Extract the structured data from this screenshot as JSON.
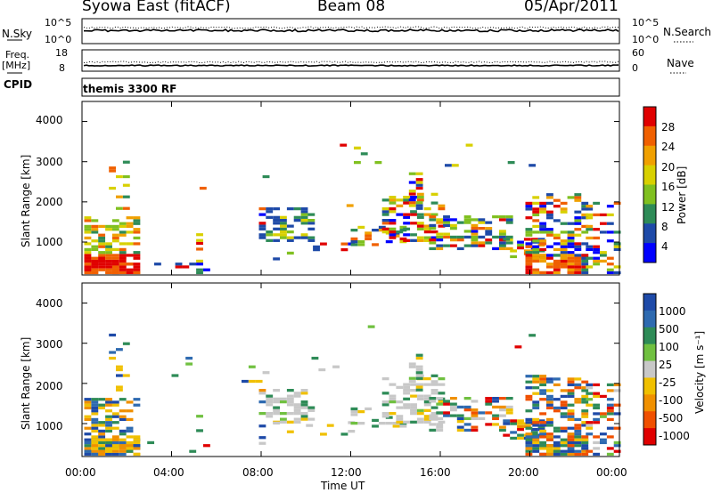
{
  "header": {
    "station": "Syowa East (fitACF)",
    "beam": "Beam 08",
    "date": "05/Apr/2011"
  },
  "top_panels": {
    "nsky_label": "N.Sky",
    "nsky_ticks": [
      "10^5",
      "10^0"
    ],
    "nsearch_label": "N.Search",
    "nsearch_ticks": [
      "10^5",
      "10^0"
    ],
    "freq_label_1": "Freq.",
    "freq_label_2": "[MHz]",
    "freq_ticks": [
      "18",
      "8"
    ],
    "nave_label": "Nave",
    "nave_ticks": [
      "60",
      "0"
    ],
    "cpid_label": "CPID",
    "cpid_value": "themis 3300 RF"
  },
  "chart_data": [
    {
      "type": "heatmap",
      "name": "power",
      "ylabel": "Slant Range [km]",
      "yticks": [
        "4000",
        "3000",
        "2000",
        "1000"
      ],
      "colorbar_label": "Power [dB]",
      "colorbar_ticks": [
        "28",
        "24",
        "20",
        "16",
        "12",
        "8",
        "4"
      ],
      "colorbar_colors": [
        "#e00000",
        "#f06000",
        "#f0a000",
        "#d8d000",
        "#80c020",
        "#2e8b57",
        "#1e4aa8",
        "#0000ff"
      ]
    },
    {
      "type": "heatmap",
      "name": "velocity",
      "ylabel": "Slant Range [km]",
      "yticks": [
        "4000",
        "3000",
        "2000",
        "1000"
      ],
      "colorbar_label": "Velocity [m s⁻¹]",
      "colorbar_ticks": [
        "1000",
        "500",
        "100",
        "25",
        "-25",
        "-100",
        "-500",
        "-1000"
      ],
      "colorbar_colors": [
        "#1e4aa8",
        "#2e6ab0",
        "#2e8b57",
        "#70c040",
        "#c8c8c8",
        "#f0c000",
        "#f09000",
        "#f05000",
        "#e00000"
      ]
    }
  ],
  "x_axis": {
    "ticks": [
      "00:00",
      "04:00",
      "08:00",
      "12:00",
      "16:00",
      "20:00",
      "00:00"
    ],
    "label": "Time UT"
  }
}
